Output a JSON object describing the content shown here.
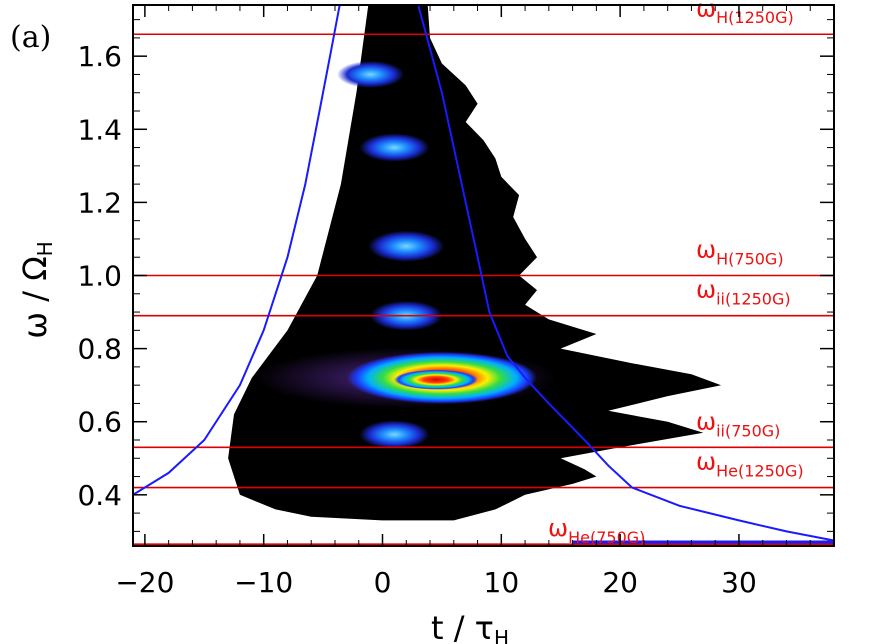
{
  "panel_label": "(a)",
  "chart_data": {
    "type": "heatmap",
    "xlabel_main": "t / τ",
    "xlabel_sub": "H",
    "ylabel_main": "ω / Ω",
    "ylabel_sub": "H",
    "xlim": [
      -21,
      38
    ],
    "ylim": [
      0.26,
      1.74
    ],
    "x_ticks": [
      -20,
      -10,
      0,
      10,
      20,
      30
    ],
    "x_tick_labels": [
      "−20",
      "−10",
      "0",
      "10",
      "20",
      "30"
    ],
    "y_ticks": [
      0.4,
      0.6,
      0.8,
      1.0,
      1.2,
      1.4,
      1.6
    ],
    "y_tick_labels": [
      "0.4",
      "0.6",
      "0.8",
      "1.0",
      "1.2",
      "1.4",
      "1.6"
    ],
    "colors": {
      "line": "#dd0000",
      "curve": "#1a1aff",
      "label": "#ee1111",
      "axis": "#000000"
    },
    "reference_lines": [
      {
        "y": 1.66,
        "label_main": "ω",
        "label_sub": "H(1250G)"
      },
      {
        "y": 1.0,
        "label_main": "ω",
        "label_sub": "H(750G)"
      },
      {
        "y": 0.89,
        "label_main": "ω",
        "label_sub": "ii(1250G)"
      },
      {
        "y": 0.53,
        "label_main": "ω",
        "label_sub": "ii(750G)"
      },
      {
        "y": 0.42,
        "label_main": "ω",
        "label_sub": "He(1250G)"
      },
      {
        "y": 0.265,
        "label_main": "ω",
        "label_sub": "He(750G)"
      }
    ],
    "curves": [
      {
        "name": "",
        "points": [
          [
            -21,
            0.4
          ],
          [
            -18,
            0.46
          ],
          [
            -15,
            0.55
          ],
          [
            -12,
            0.7
          ],
          [
            -10,
            0.85
          ],
          [
            -8,
            1.05
          ],
          [
            -6.5,
            1.25
          ],
          [
            -5.3,
            1.45
          ],
          [
            -4.3,
            1.62
          ],
          [
            -3.6,
            1.74
          ]
        ]
      },
      {
        "name": "",
        "points": [
          [
            3,
            1.74
          ],
          [
            5,
            1.5
          ],
          [
            6,
            1.35
          ],
          [
            7,
            1.2
          ],
          [
            8,
            1.05
          ],
          [
            9,
            0.9
          ],
          [
            10.5,
            0.78
          ],
          [
            12,
            0.72
          ],
          [
            14,
            0.65
          ],
          [
            17,
            0.55
          ],
          [
            19,
            0.48
          ],
          [
            21,
            0.42
          ],
          [
            25,
            0.37
          ],
          [
            30,
            0.33
          ],
          [
            34,
            0.3
          ],
          [
            38,
            0.275
          ]
        ]
      }
    ],
    "envelope": [
      [
        -1.2,
        1.74
      ],
      [
        -2.2,
        1.5
      ],
      [
        -3.5,
        1.25
      ],
      [
        -5.5,
        1.0
      ],
      [
        -8,
        0.85
      ],
      [
        -11,
        0.72
      ],
      [
        -12.5,
        0.62
      ],
      [
        -13,
        0.5
      ],
      [
        -12,
        0.4
      ],
      [
        -9,
        0.36
      ],
      [
        -6,
        0.34
      ],
      [
        0,
        0.33
      ],
      [
        6,
        0.33
      ],
      [
        9.5,
        0.36
      ],
      [
        12,
        0.4
      ],
      [
        16,
        0.43
      ],
      [
        18,
        0.45
      ],
      [
        17,
        0.47
      ],
      [
        15,
        0.5
      ],
      [
        20,
        0.53
      ],
      [
        27,
        0.57
      ],
      [
        24,
        0.6
      ],
      [
        19,
        0.63
      ],
      [
        24,
        0.67
      ],
      [
        28.5,
        0.7
      ],
      [
        26,
        0.73
      ],
      [
        21,
        0.76
      ],
      [
        15,
        0.8
      ],
      [
        18,
        0.84
      ],
      [
        14,
        0.88
      ],
      [
        12,
        0.92
      ],
      [
        13,
        0.96
      ],
      [
        11.5,
        1.0
      ],
      [
        13,
        1.05
      ],
      [
        12,
        1.1
      ],
      [
        11,
        1.16
      ],
      [
        11.5,
        1.22
      ],
      [
        10,
        1.27
      ],
      [
        9.5,
        1.32
      ],
      [
        8.5,
        1.37
      ],
      [
        7,
        1.42
      ],
      [
        8,
        1.47
      ],
      [
        7,
        1.52
      ],
      [
        5,
        1.58
      ],
      [
        4,
        1.65
      ],
      [
        3.8,
        1.74
      ]
    ],
    "hotspots": [
      {
        "x": 5,
        "y": 0.72,
        "level": 1.0
      },
      {
        "x": 4.5,
        "y": 0.715,
        "level": 0.8
      },
      {
        "x": 2,
        "y": 0.89,
        "level": 0.35
      },
      {
        "x": 2,
        "y": 1.08,
        "level": 0.4
      },
      {
        "x": 1,
        "y": 1.35,
        "level": 0.3
      },
      {
        "x": 1,
        "y": 0.565,
        "level": 0.3
      },
      {
        "x": -1,
        "y": 1.55,
        "level": 0.25
      }
    ]
  }
}
